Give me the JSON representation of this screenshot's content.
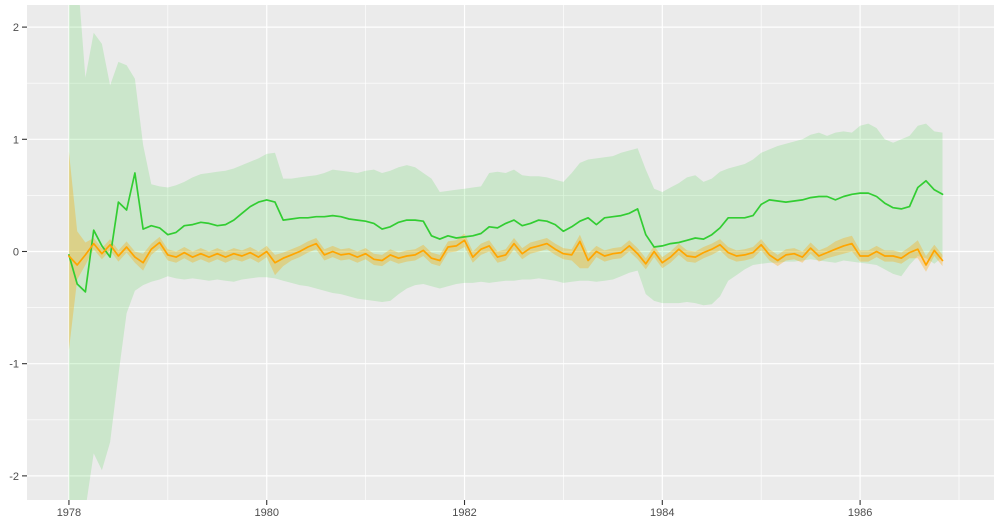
{
  "figure": {
    "background": "#FFFFFF",
    "panel_background": "#EBEBEB",
    "grid_major_color": "#FFFFFF",
    "grid_minor_color": "#FFFFFF",
    "tick_mark_color": "#333333",
    "tick_label_color": "#4D4D4D"
  },
  "chart_data": {
    "type": "line",
    "title": "",
    "xlabel": "",
    "ylabel": "",
    "legend": "none",
    "grid": "major+minor",
    "x_unit": "year, monthly samples starting Jan 1978",
    "x_start": 1978.0,
    "x_step": 0.0833333,
    "xlim": [
      1977.576,
      1987.354
    ],
    "ylim": [
      -2.215,
      2.197
    ],
    "x_ticks": {
      "major": [
        1978,
        1980,
        1982,
        1984,
        1986
      ],
      "minor": [
        1979,
        1981,
        1983,
        1985,
        1987
      ],
      "labels": [
        "1978",
        "1980",
        "1982",
        "1984",
        "1986"
      ]
    },
    "y_ticks": {
      "major": [
        2,
        1,
        0,
        -1,
        -2
      ],
      "minor": [
        1.5,
        0.5,
        -0.5,
        -1.5
      ],
      "labels": [
        "2",
        "1",
        "0",
        "-1",
        "-2"
      ]
    },
    "series": [
      {
        "name": "green-series",
        "line_color": "#32CD32",
        "ribbon_color": "rgba(50,205,50,0.17)",
        "line_width": 1.7,
        "values": [
          -0.03,
          -0.29,
          -0.36,
          0.19,
          0.05,
          -0.05,
          0.44,
          0.37,
          0.7,
          0.2,
          0.23,
          0.21,
          0.15,
          0.17,
          0.23,
          0.24,
          0.26,
          0.25,
          0.23,
          0.24,
          0.28,
          0.34,
          0.4,
          0.44,
          0.46,
          0.44,
          0.28,
          0.29,
          0.3,
          0.3,
          0.31,
          0.31,
          0.32,
          0.31,
          0.29,
          0.28,
          0.27,
          0.25,
          0.2,
          0.22,
          0.26,
          0.28,
          0.28,
          0.27,
          0.14,
          0.11,
          0.14,
          0.12,
          0.13,
          0.14,
          0.16,
          0.22,
          0.21,
          0.25,
          0.28,
          0.23,
          0.25,
          0.28,
          0.27,
          0.24,
          0.18,
          0.22,
          0.27,
          0.3,
          0.24,
          0.3,
          0.31,
          0.32,
          0.34,
          0.38,
          0.15,
          0.04,
          0.05,
          0.07,
          0.08,
          0.1,
          0.12,
          0.11,
          0.15,
          0.21,
          0.3,
          0.3,
          0.3,
          0.32,
          0.42,
          0.46,
          0.45,
          0.44,
          0.45,
          0.46,
          0.48,
          0.49,
          0.49,
          0.46,
          0.49,
          0.51,
          0.52,
          0.52,
          0.49,
          0.43,
          0.39,
          0.38,
          0.4,
          0.57,
          0.63,
          0.55,
          0.51
        ],
        "upper": [
          2.5,
          2.5,
          1.55,
          1.95,
          1.85,
          1.48,
          1.69,
          1.66,
          1.54,
          0.95,
          0.6,
          0.58,
          0.57,
          0.59,
          0.62,
          0.66,
          0.69,
          0.7,
          0.71,
          0.72,
          0.74,
          0.77,
          0.8,
          0.83,
          0.87,
          0.88,
          0.65,
          0.65,
          0.66,
          0.67,
          0.68,
          0.7,
          0.73,
          0.72,
          0.71,
          0.7,
          0.72,
          0.73,
          0.7,
          0.72,
          0.75,
          0.77,
          0.75,
          0.7,
          0.65,
          0.53,
          0.54,
          0.55,
          0.56,
          0.57,
          0.58,
          0.7,
          0.71,
          0.7,
          0.73,
          0.68,
          0.67,
          0.67,
          0.66,
          0.64,
          0.62,
          0.7,
          0.79,
          0.82,
          0.83,
          0.84,
          0.85,
          0.88,
          0.9,
          0.92,
          0.73,
          0.56,
          0.53,
          0.57,
          0.61,
          0.66,
          0.68,
          0.62,
          0.65,
          0.71,
          0.74,
          0.76,
          0.78,
          0.82,
          0.88,
          0.91,
          0.94,
          0.96,
          0.98,
          1.0,
          1.04,
          1.06,
          1.03,
          1.06,
          1.07,
          1.06,
          1.12,
          1.14,
          1.1,
          1.0,
          0.97,
          1.0,
          1.03,
          1.12,
          1.14,
          1.07,
          1.06
        ],
        "lower": [
          -2.5,
          -2.5,
          -2.3,
          -1.8,
          -1.95,
          -1.7,
          -1.1,
          -0.55,
          -0.35,
          -0.3,
          -0.27,
          -0.25,
          -0.22,
          -0.24,
          -0.25,
          -0.24,
          -0.25,
          -0.26,
          -0.25,
          -0.26,
          -0.27,
          -0.25,
          -0.24,
          -0.23,
          -0.23,
          -0.24,
          -0.26,
          -0.28,
          -0.3,
          -0.31,
          -0.33,
          -0.35,
          -0.37,
          -0.38,
          -0.4,
          -0.42,
          -0.43,
          -0.44,
          -0.45,
          -0.44,
          -0.38,
          -0.33,
          -0.3,
          -0.29,
          -0.31,
          -0.33,
          -0.31,
          -0.29,
          -0.28,
          -0.28,
          -0.27,
          -0.28,
          -0.27,
          -0.26,
          -0.26,
          -0.25,
          -0.25,
          -0.24,
          -0.25,
          -0.26,
          -0.28,
          -0.27,
          -0.26,
          -0.26,
          -0.27,
          -0.26,
          -0.25,
          -0.22,
          -0.19,
          -0.17,
          -0.38,
          -0.44,
          -0.46,
          -0.46,
          -0.46,
          -0.45,
          -0.46,
          -0.48,
          -0.47,
          -0.4,
          -0.26,
          -0.21,
          -0.16,
          -0.12,
          -0.11,
          -0.1,
          -0.1,
          -0.09,
          -0.09,
          -0.08,
          -0.07,
          -0.08,
          -0.09,
          -0.1,
          -0.08,
          -0.09,
          -0.1,
          -0.11,
          -0.12,
          -0.16,
          -0.2,
          -0.22,
          -0.12,
          -0.04,
          -0.06,
          -0.11,
          -0.05
        ]
      },
      {
        "name": "orange-series",
        "line_color": "#FFA500",
        "ribbon_color": "rgba(255,165,0,0.32)",
        "line_width": 1.7,
        "values": [
          -0.04,
          -0.12,
          -0.03,
          0.07,
          -0.02,
          0.06,
          -0.04,
          0.04,
          -0.05,
          -0.1,
          0.02,
          0.08,
          -0.03,
          -0.05,
          -0.01,
          -0.05,
          -0.02,
          -0.05,
          -0.02,
          -0.05,
          -0.02,
          -0.04,
          -0.01,
          -0.05,
          0.0,
          -0.1,
          -0.06,
          -0.03,
          0.0,
          0.04,
          0.07,
          -0.03,
          0.0,
          -0.03,
          -0.02,
          -0.05,
          -0.02,
          -0.07,
          -0.08,
          -0.03,
          -0.06,
          -0.04,
          -0.03,
          0.01,
          -0.06,
          -0.08,
          0.04,
          0.05,
          0.1,
          -0.05,
          0.02,
          0.05,
          -0.05,
          -0.03,
          0.07,
          -0.02,
          0.03,
          0.05,
          0.07,
          0.02,
          -0.02,
          -0.03,
          0.09,
          -0.08,
          0.0,
          -0.04,
          -0.02,
          -0.01,
          0.05,
          -0.02,
          -0.11,
          0.0,
          -0.1,
          -0.05,
          0.02,
          -0.04,
          -0.05,
          -0.01,
          0.02,
          0.06,
          -0.01,
          -0.04,
          -0.03,
          -0.01,
          0.06,
          -0.03,
          -0.08,
          -0.03,
          -0.02,
          -0.05,
          0.03,
          -0.04,
          -0.01,
          0.02,
          0.05,
          0.07,
          -0.04,
          -0.04,
          0.0,
          -0.04,
          -0.04,
          -0.06,
          -0.01,
          0.02,
          -0.12,
          0.01,
          -0.08
        ],
        "upper": [
          0.89,
          0.18,
          0.08,
          0.12,
          0.03,
          0.11,
          0.01,
          0.09,
          0.0,
          -0.02,
          0.07,
          0.13,
          0.02,
          0.0,
          0.04,
          0.0,
          0.03,
          0.0,
          0.03,
          0.0,
          0.03,
          0.01,
          0.04,
          0.0,
          0.05,
          -0.03,
          -0.01,
          0.02,
          0.05,
          0.09,
          0.12,
          0.02,
          0.05,
          0.02,
          0.03,
          0.0,
          0.03,
          -0.02,
          -0.03,
          0.02,
          -0.01,
          0.01,
          0.02,
          0.06,
          -0.01,
          -0.03,
          0.09,
          0.1,
          0.16,
          0.0,
          0.07,
          0.1,
          0.0,
          0.02,
          0.12,
          0.03,
          0.08,
          0.1,
          0.12,
          0.07,
          0.03,
          0.02,
          0.15,
          -0.02,
          0.05,
          0.01,
          0.03,
          0.04,
          0.1,
          0.03,
          -0.06,
          0.05,
          -0.05,
          0.0,
          0.07,
          0.01,
          0.0,
          0.04,
          0.07,
          0.11,
          0.04,
          0.01,
          0.02,
          0.04,
          0.11,
          0.02,
          -0.03,
          0.02,
          0.03,
          0.0,
          0.08,
          0.01,
          0.04,
          0.09,
          0.12,
          0.14,
          0.01,
          0.01,
          0.05,
          0.01,
          0.01,
          -0.01,
          0.04,
          0.1,
          -0.04,
          0.06,
          -0.03
        ],
        "lower": [
          -0.88,
          -0.25,
          -0.12,
          0.02,
          -0.07,
          0.01,
          -0.09,
          -0.01,
          -0.1,
          -0.17,
          -0.03,
          0.03,
          -0.08,
          -0.1,
          -0.06,
          -0.1,
          -0.07,
          -0.1,
          -0.07,
          -0.1,
          -0.07,
          -0.09,
          -0.06,
          -0.1,
          -0.05,
          -0.21,
          -0.13,
          -0.08,
          -0.05,
          -0.01,
          0.02,
          -0.08,
          -0.05,
          -0.08,
          -0.07,
          -0.1,
          -0.07,
          -0.12,
          -0.13,
          -0.08,
          -0.11,
          -0.09,
          -0.08,
          -0.04,
          -0.11,
          -0.13,
          -0.01,
          0.0,
          0.04,
          -0.1,
          -0.03,
          0.0,
          -0.1,
          -0.08,
          0.02,
          -0.07,
          -0.02,
          0.0,
          0.02,
          -0.03,
          -0.07,
          -0.08,
          -0.15,
          -0.15,
          -0.05,
          -0.09,
          -0.07,
          -0.06,
          0.0,
          -0.07,
          -0.16,
          -0.05,
          -0.15,
          -0.1,
          -0.03,
          -0.09,
          -0.1,
          -0.06,
          -0.03,
          0.01,
          -0.06,
          -0.09,
          -0.08,
          -0.06,
          0.01,
          -0.08,
          -0.13,
          -0.08,
          -0.07,
          -0.1,
          -0.02,
          -0.09,
          -0.06,
          -0.04,
          -0.02,
          0.0,
          -0.09,
          -0.09,
          -0.05,
          -0.09,
          -0.09,
          -0.11,
          -0.06,
          -0.06,
          -0.18,
          -0.04,
          -0.13
        ]
      }
    ]
  }
}
